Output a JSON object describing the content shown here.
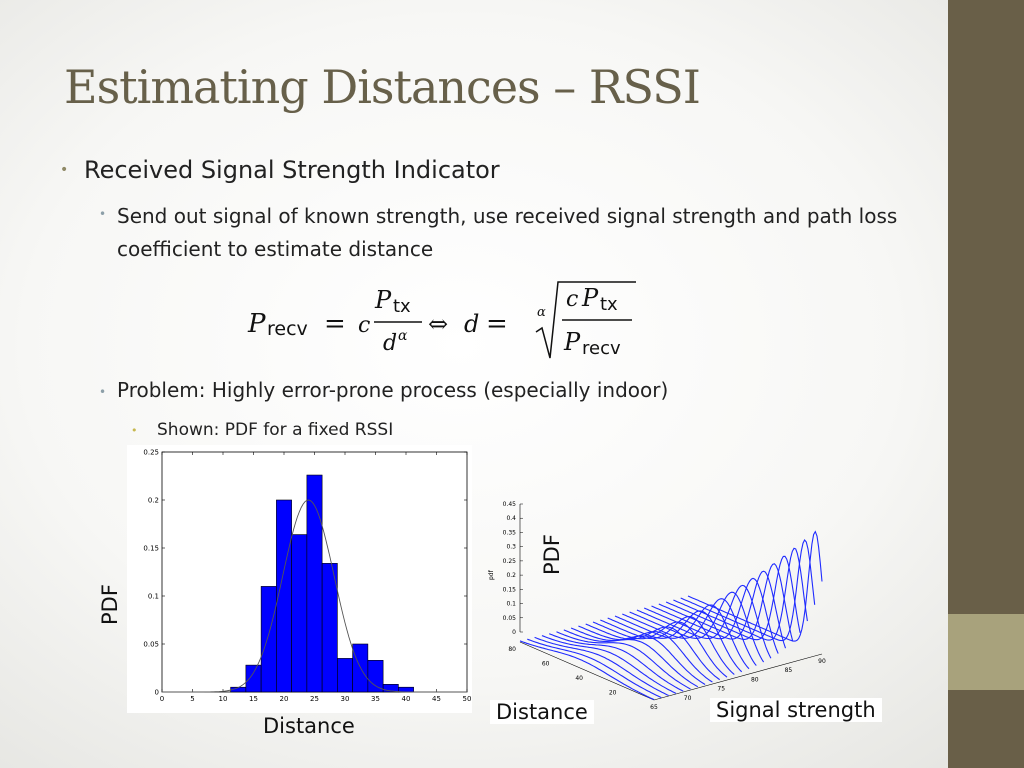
{
  "title": "Estimating Distances – RSSI",
  "bullets": {
    "l1": "Received Signal Strength Indicator",
    "l2": "Send out signal of known strength, use received signal strength and path loss coefficient to estimate distance",
    "l3": "Problem: Highly error-prone process (especially indoor)",
    "l4": "Shown: PDF for a fixed RSSI"
  },
  "bullet_glyph": "•",
  "formula": {
    "p": "P",
    "recv": "recv",
    "tx": "tx",
    "c": "c",
    "d": "d",
    "alpha": "α",
    "equals": "=",
    "iff": "⇔"
  },
  "colors": {
    "title": "#67604a",
    "sidebar": "#695f48",
    "sidebar_accent": "#a8a27c",
    "bar_fill": "#0000ff"
  },
  "labels": {
    "pdf_left": "PDF",
    "distance_left": "Distance",
    "pdf_right": "PDF",
    "distance_right": "Distance",
    "signal_strength": "Signal strength",
    "pdf_axis_small": "pdf"
  },
  "chart_data": [
    {
      "type": "bar",
      "x_ticks": [
        "0",
        "5",
        "10",
        "15",
        "20",
        "25",
        "30",
        "35",
        "40",
        "45",
        "50"
      ],
      "y_ticks": [
        "0",
        "0.05",
        "0.1",
        "0.15",
        "0.2",
        "0.25"
      ],
      "xlim": [
        0,
        50
      ],
      "ylim": [
        0,
        0.25
      ],
      "bin_centers": [
        10,
        12.5,
        15,
        17.5,
        20,
        22.5,
        25,
        27.5,
        30,
        32.5,
        35,
        37.5,
        40
      ],
      "values": [
        0,
        0.005,
        0.028,
        0.11,
        0.2,
        0.164,
        0.226,
        0.134,
        0.035,
        0.05,
        0.033,
        0.008,
        0.005
      ],
      "fit_curve": {
        "kind": "normal",
        "mean": 24,
        "peak": 0.2,
        "sigma": 4.2
      },
      "xlabel": "Distance",
      "ylabel": "PDF"
    },
    {
      "type": "area",
      "y_ticks": [
        "0",
        "0.05",
        "0.1",
        "0.15",
        "0.2",
        "0.25",
        "0.3",
        "0.35",
        "0.4",
        "0.45"
      ],
      "distance_ticks": [
        "20",
        "40",
        "60",
        "80"
      ],
      "signal_ticks": [
        "65",
        "70",
        "75",
        "80",
        "85",
        "90"
      ],
      "zlim": [
        0,
        0.45
      ],
      "signal_range": [
        65,
        90
      ],
      "distance_range": [
        0,
        80
      ],
      "series_count": 24,
      "xlabel": "Distance",
      "ylabel": "Signal strength",
      "zlabel": "PDF"
    }
  ]
}
